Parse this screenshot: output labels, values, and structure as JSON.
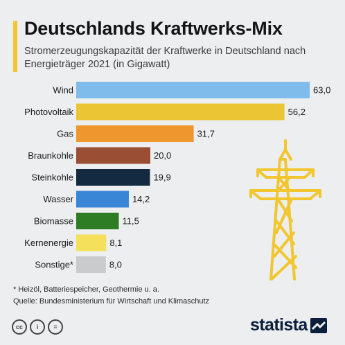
{
  "header": {
    "title": "Deutschlands Kraftwerks-Mix",
    "subtitle": "Stromerzeugungskapazität der Kraftwerke in Deutschland nach Energieträger 2021 (in Gigawatt)"
  },
  "chart_data": {
    "type": "bar",
    "orientation": "horizontal",
    "title": "Deutschlands Kraftwerks-Mix",
    "subtitle": "Stromerzeugungskapazität der Kraftwerke in Deutschland nach Energieträger 2021 (in Gigawatt)",
    "categories": [
      "Wind",
      "Photovoltaik",
      "Gas",
      "Braunkohle",
      "Steinkohle",
      "Wasser",
      "Biomasse",
      "Kernenergie",
      "Sonstige*"
    ],
    "values": [
      63.0,
      56.2,
      31.7,
      20.0,
      19.9,
      14.2,
      11.5,
      8.1,
      8.0
    ],
    "value_labels": [
      "63,0",
      "56,2",
      "31,7",
      "20,0",
      "19,9",
      "14,2",
      "11,5",
      "8,1",
      "8,0"
    ],
    "colors": [
      "#7fbcec",
      "#ecc534",
      "#f0962e",
      "#9a4e33",
      "#132a40",
      "#3a86d6",
      "#2e7d24",
      "#f4e05a",
      "#c9cbcd"
    ],
    "xlim": [
      0,
      63
    ],
    "grid": false,
    "legend": "none",
    "illustration": "power-pylon"
  },
  "footer": {
    "note": "* Heizöl, Batteriespeicher, Geothermie u. a.",
    "source": "Quelle: Bundesministerium für Wirtschaft und Klimaschutz",
    "license_icons": [
      "cc-icon",
      "by-icon",
      "nd-icon"
    ],
    "license_glyphs": [
      "cc",
      "i",
      "="
    ],
    "brand": "statista"
  }
}
